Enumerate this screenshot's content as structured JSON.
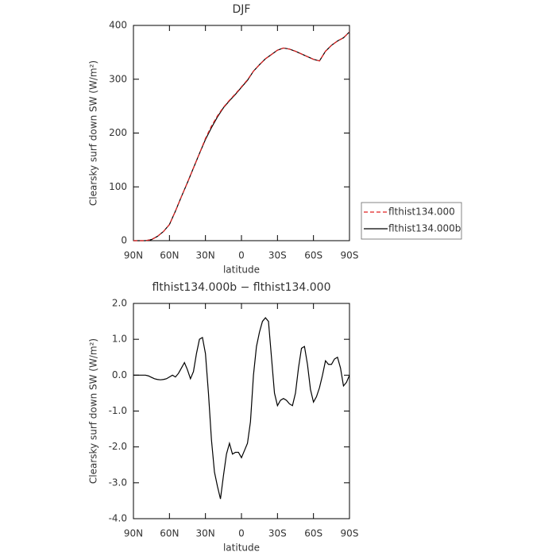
{
  "chart_data": [
    {
      "type": "line",
      "title": "DJF",
      "xlabel": "latitude",
      "ylabel": "Clearsky surf down SW (W/m²)",
      "x": [
        90,
        85,
        80,
        75,
        70,
        65,
        60,
        55,
        50,
        45,
        40,
        35,
        30,
        25,
        20,
        15,
        10,
        5,
        0,
        -5,
        -10,
        -15,
        -20,
        -25,
        -30,
        -35,
        -40,
        -45,
        -50,
        -55,
        -60,
        -65,
        -70,
        -75,
        -80,
        -85,
        -90
      ],
      "series": [
        {
          "name": "flthist134.000",
          "color": "#e02020",
          "style": "dashed",
          "values": [
            0,
            0,
            0,
            2,
            8,
            17,
            30,
            55,
            82,
            108,
            135,
            162,
            190,
            213,
            232,
            248,
            261,
            273,
            286,
            299,
            315,
            327,
            338,
            346,
            354,
            358,
            356,
            352,
            347,
            342,
            337,
            334,
            352,
            363,
            371,
            377,
            388
          ]
        },
        {
          "name": "flthist134.000b",
          "color": "#000000",
          "style": "solid",
          "values": [
            0,
            0,
            0,
            2,
            8,
            17,
            30,
            55,
            82,
            108,
            135,
            162,
            188,
            210,
            230,
            247,
            260,
            272,
            285,
            298,
            315,
            327,
            338,
            346,
            354,
            358,
            356,
            352,
            347,
            342,
            337,
            334,
            352,
            363,
            371,
            377,
            388
          ]
        }
      ],
      "xlim": [
        90,
        -90
      ],
      "xticks": [
        {
          "value": 90,
          "label": "90N"
        },
        {
          "value": 60,
          "label": "60N"
        },
        {
          "value": 30,
          "label": "30N"
        },
        0,
        {
          "value": -30,
          "label": "30S"
        },
        {
          "value": -60,
          "label": "60S"
        },
        {
          "value": -90,
          "label": "90S"
        }
      ],
      "ylim": [
        0,
        400
      ],
      "yticks": [
        0,
        100,
        200,
        300,
        400
      ],
      "legend": "right"
    },
    {
      "type": "line",
      "title": "flthist134.000b − flthist134.000",
      "xlabel": "latitude",
      "ylabel": "Clearsky surf down SW (W/m²)",
      "x": [
        90,
        87.5,
        85,
        82.5,
        80,
        77.5,
        75,
        72.5,
        70,
        67.5,
        65,
        62.5,
        60,
        57.5,
        55,
        52.5,
        50,
        47.5,
        45,
        42.5,
        40,
        37.5,
        35,
        32.5,
        30,
        27.5,
        25,
        22.5,
        20,
        17.5,
        15,
        12.5,
        10,
        7.5,
        5,
        2.5,
        0,
        -2.5,
        -5,
        -7.5,
        -10,
        -12.5,
        -15,
        -17.5,
        -20,
        -22.5,
        -25,
        -27.5,
        -30,
        -32.5,
        -35,
        -37.5,
        -40,
        -42.5,
        -45,
        -47.5,
        -50,
        -52.5,
        -55,
        -57.5,
        -60,
        -62.5,
        -65,
        -67.5,
        -70,
        -72.5,
        -75,
        -77.5,
        -80,
        -82.5,
        -85,
        -87.5,
        -90
      ],
      "series": [
        {
          "name": "flthist134.000b − flthist134.000",
          "color": "#000000",
          "style": "solid",
          "values": [
            0,
            0,
            0,
            0,
            0,
            -0.02,
            -0.06,
            -0.1,
            -0.12,
            -0.13,
            -0.12,
            -0.1,
            -0.05,
            0.0,
            -0.05,
            0.05,
            0.2,
            0.35,
            0.15,
            -0.1,
            0.1,
            0.6,
            1.0,
            1.05,
            0.6,
            -0.5,
            -1.8,
            -2.7,
            -3.1,
            -3.45,
            -2.8,
            -2.2,
            -1.9,
            -2.2,
            -2.15,
            -2.15,
            -2.3,
            -2.1,
            -1.9,
            -1.3,
            0.0,
            0.8,
            1.2,
            1.5,
            1.6,
            1.5,
            0.5,
            -0.5,
            -0.85,
            -0.7,
            -0.65,
            -0.7,
            -0.8,
            -0.85,
            -0.5,
            0.2,
            0.75,
            0.8,
            0.3,
            -0.4,
            -0.75,
            -0.6,
            -0.35,
            0.0,
            0.4,
            0.3,
            0.3,
            0.45,
            0.5,
            0.2,
            -0.3,
            -0.2,
            0
          ]
        }
      ],
      "xlim": [
        90,
        -90
      ],
      "xticks": [
        {
          "value": 90,
          "label": "90N"
        },
        {
          "value": 60,
          "label": "60N"
        },
        {
          "value": 30,
          "label": "30N"
        },
        0,
        {
          "value": -30,
          "label": "30S"
        },
        {
          "value": -60,
          "label": "60S"
        },
        {
          "value": -90,
          "label": "90S"
        }
      ],
      "ylim": [
        -4,
        2
      ],
      "yticks": [
        {
          "value": -4,
          "label": "-4.0"
        },
        {
          "value": -3,
          "label": "-3.0"
        },
        {
          "value": -2,
          "label": "-2.0"
        },
        {
          "value": -1,
          "label": "-1.0"
        },
        {
          "value": 0,
          "label": "0.0"
        },
        {
          "value": 1,
          "label": "1.0"
        },
        {
          "value": 2,
          "label": "2.0"
        }
      ]
    }
  ]
}
